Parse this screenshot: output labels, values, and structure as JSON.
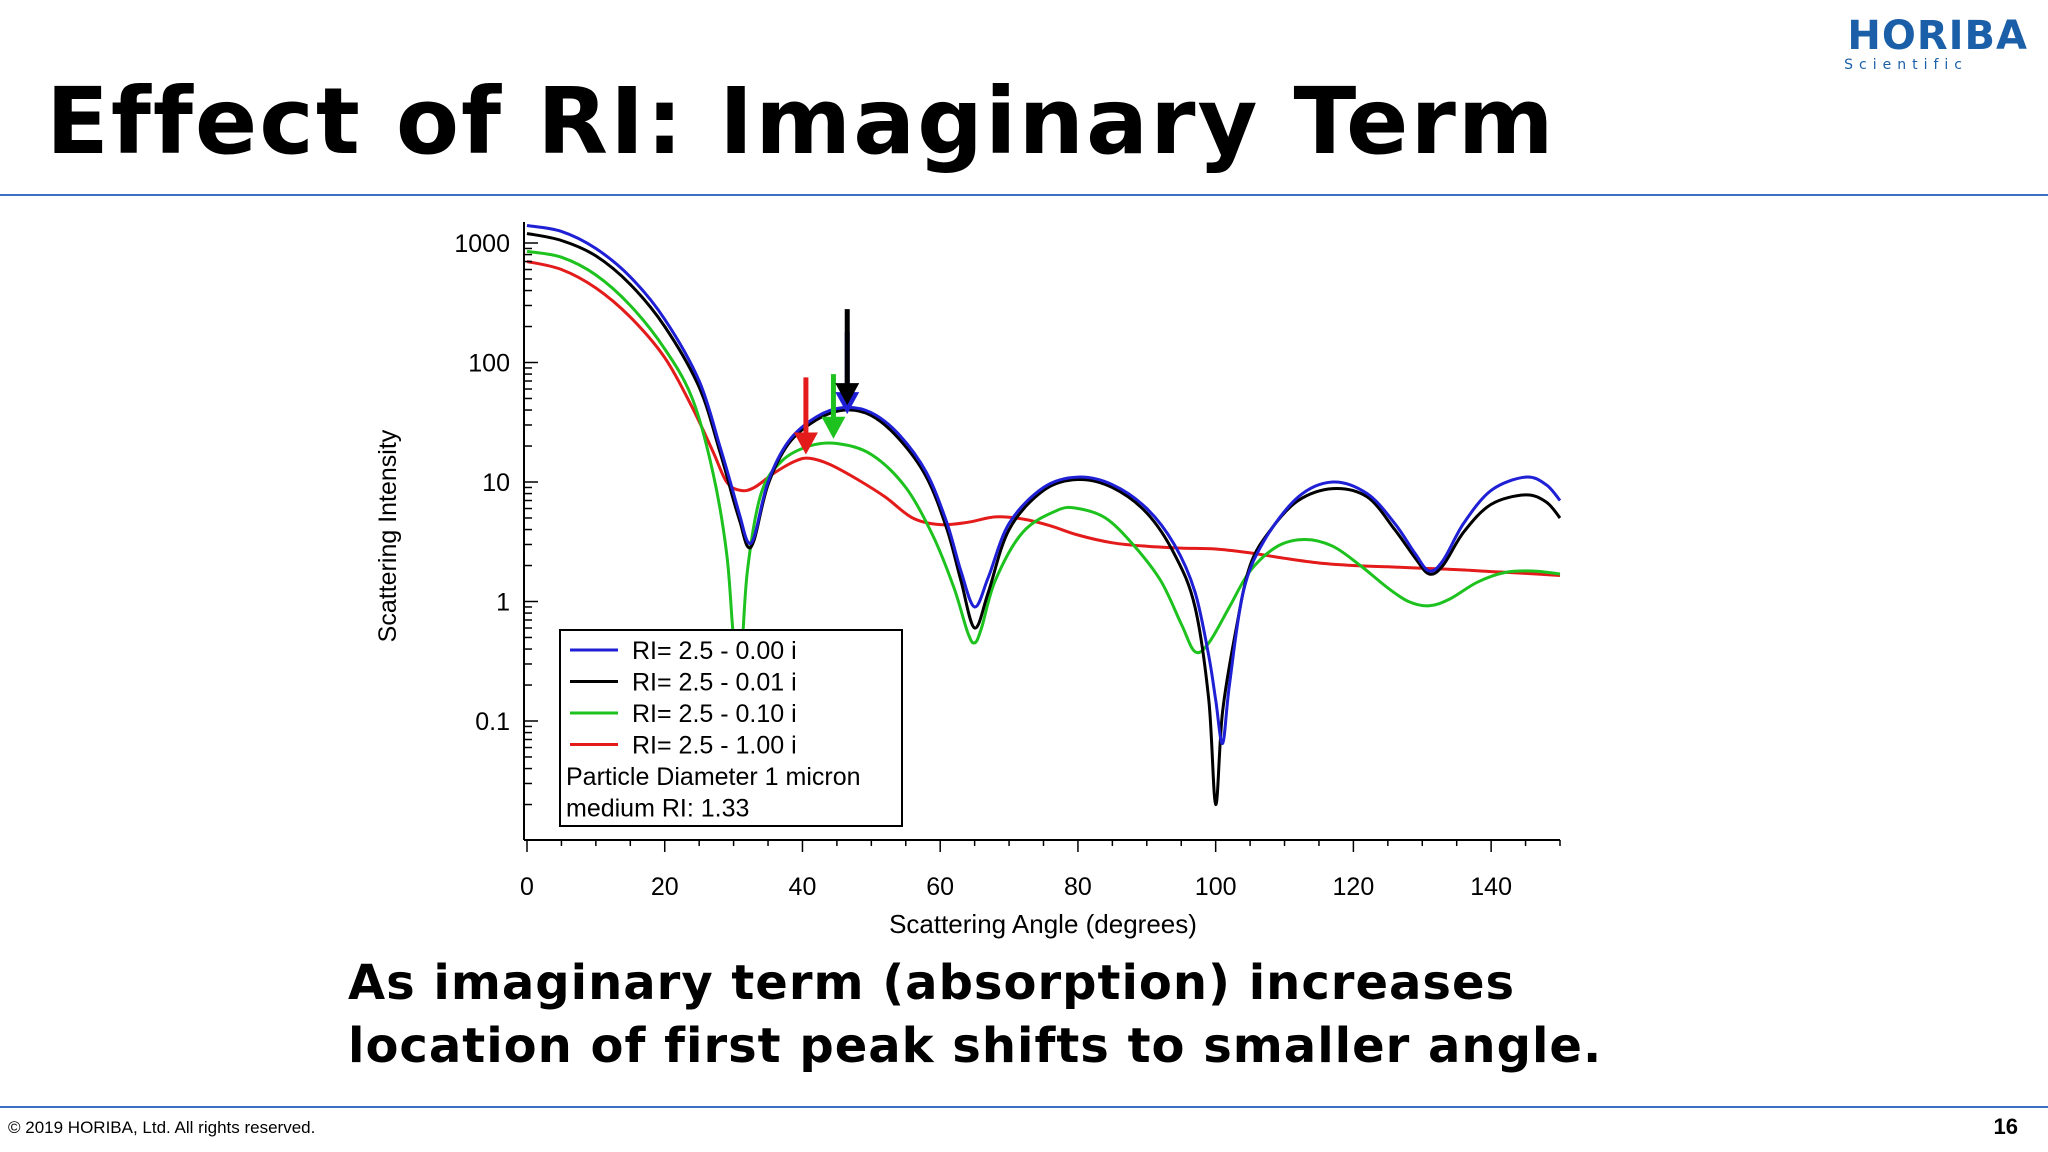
{
  "slide": {
    "title": "Effect of RI: Imaginary Term",
    "logo": {
      "main": "HORIBA",
      "sub": "Scientific"
    },
    "caption_lines": [
      "As imaginary term (absorption) increases",
      "location of first peak shifts to smaller angle."
    ],
    "footer_copyright": "© 2019 HORIBA, Ltd. All rights reserved.",
    "page_number": "16"
  },
  "chart_data": {
    "type": "line",
    "title": "",
    "xlabel": "Scattering Angle (degrees)",
    "ylabel": "Scattering Intensity",
    "xlim": [
      0,
      150
    ],
    "ylim": [
      0.01,
      1500
    ],
    "yscale": "log",
    "xticks": [
      0,
      20,
      40,
      60,
      80,
      100,
      120,
      140
    ],
    "yticks": [
      1000,
      100,
      10,
      1,
      0.1
    ],
    "ytick_labels": [
      "1000",
      "100",
      "10",
      "1",
      "0.1"
    ],
    "legend_position": "bottom-left",
    "legend_notes": [
      "Particle Diameter 1 micron",
      "medium RI:  1.33"
    ],
    "series": [
      {
        "name": "RI= 2.5 - 0.00 i",
        "color": "#1f1fd6",
        "points": [
          [
            0,
            1400
          ],
          [
            5,
            1250
          ],
          [
            10,
            900
          ],
          [
            15,
            520
          ],
          [
            20,
            230
          ],
          [
            25,
            70
          ],
          [
            28,
            20
          ],
          [
            30,
            8
          ],
          [
            31,
            5
          ],
          [
            32,
            3.2
          ],
          [
            33,
            3.5
          ],
          [
            35,
            10
          ],
          [
            38,
            22
          ],
          [
            42,
            35
          ],
          [
            46,
            42
          ],
          [
            50,
            38
          ],
          [
            54,
            25
          ],
          [
            58,
            12
          ],
          [
            61,
            4.5
          ],
          [
            63,
            1.8
          ],
          [
            65,
            0.9
          ],
          [
            67,
            1.6
          ],
          [
            70,
            4.5
          ],
          [
            75,
            9
          ],
          [
            80,
            11
          ],
          [
            85,
            9.5
          ],
          [
            90,
            6
          ],
          [
            94,
            3
          ],
          [
            97,
            1.2
          ],
          [
            99,
            0.35
          ],
          [
            100,
            0.15
          ],
          [
            101,
            0.065
          ],
          [
            102,
            0.2
          ],
          [
            104,
            1.2
          ],
          [
            107,
            3.2
          ],
          [
            112,
            7.5
          ],
          [
            117,
            10
          ],
          [
            122,
            8
          ],
          [
            126,
            4.5
          ],
          [
            129,
            2.5
          ],
          [
            131,
            1.8
          ],
          [
            133,
            2.2
          ],
          [
            136,
            4.5
          ],
          [
            140,
            8.5
          ],
          [
            145,
            11
          ],
          [
            148,
            9.5
          ],
          [
            150,
            7
          ]
        ]
      },
      {
        "name": "RI= 2.5 - 0.01 i",
        "color": "#000000",
        "points": [
          [
            0,
            1200
          ],
          [
            5,
            1050
          ],
          [
            10,
            780
          ],
          [
            15,
            450
          ],
          [
            20,
            200
          ],
          [
            25,
            62
          ],
          [
            28,
            18
          ],
          [
            30,
            7
          ],
          [
            31,
            4.5
          ],
          [
            32,
            2.9
          ],
          [
            33,
            3.3
          ],
          [
            35,
            9.5
          ],
          [
            38,
            21
          ],
          [
            42,
            33
          ],
          [
            46,
            40
          ],
          [
            50,
            36
          ],
          [
            54,
            23
          ],
          [
            58,
            11
          ],
          [
            61,
            4
          ],
          [
            63,
            1.5
          ],
          [
            65,
            0.6
          ],
          [
            67,
            1.2
          ],
          [
            70,
            4
          ],
          [
            75,
            8.5
          ],
          [
            80,
            10.5
          ],
          [
            85,
            9
          ],
          [
            90,
            5.5
          ],
          [
            94,
            2.5
          ],
          [
            97,
            0.9
          ],
          [
            99,
            0.15
          ],
          [
            100,
            0.02
          ],
          [
            101,
            0.12
          ],
          [
            103,
            0.6
          ],
          [
            105,
            2
          ],
          [
            108,
            4
          ],
          [
            112,
            7
          ],
          [
            117,
            8.8
          ],
          [
            122,
            7.5
          ],
          [
            126,
            4
          ],
          [
            129,
            2.3
          ],
          [
            131,
            1.7
          ],
          [
            133,
            2
          ],
          [
            136,
            3.8
          ],
          [
            140,
            6.5
          ],
          [
            145,
            7.8
          ],
          [
            148,
            6.8
          ],
          [
            150,
            5
          ]
        ]
      },
      {
        "name": "RI= 2.5 - 0.10 i",
        "color": "#1ec21e",
        "points": [
          [
            0,
            850
          ],
          [
            5,
            760
          ],
          [
            10,
            540
          ],
          [
            15,
            300
          ],
          [
            20,
            130
          ],
          [
            24,
            50
          ],
          [
            27,
            12
          ],
          [
            29,
            2.5
          ],
          [
            30,
            0.5
          ],
          [
            31,
            0.3
          ],
          [
            32,
            1.8
          ],
          [
            34,
            8
          ],
          [
            37,
            15
          ],
          [
            41,
            20
          ],
          [
            45,
            21
          ],
          [
            50,
            17
          ],
          [
            55,
            9
          ],
          [
            59,
            3.5
          ],
          [
            62,
            1.3
          ],
          [
            64,
            0.55
          ],
          [
            65,
            0.45
          ],
          [
            66,
            0.6
          ],
          [
            68,
            1.5
          ],
          [
            72,
            3.8
          ],
          [
            77,
            5.8
          ],
          [
            80,
            6
          ],
          [
            84,
            5
          ],
          [
            88,
            3
          ],
          [
            92,
            1.5
          ],
          [
            95,
            0.65
          ],
          [
            97,
            0.38
          ],
          [
            99,
            0.45
          ],
          [
            102,
            0.9
          ],
          [
            105,
            1.8
          ],
          [
            109,
            2.9
          ],
          [
            113,
            3.3
          ],
          [
            117,
            2.9
          ],
          [
            121,
            2
          ],
          [
            125,
            1.3
          ],
          [
            128,
            1
          ],
          [
            131,
            0.92
          ],
          [
            134,
            1.05
          ],
          [
            138,
            1.45
          ],
          [
            142,
            1.75
          ],
          [
            146,
            1.8
          ],
          [
            150,
            1.7
          ]
        ]
      },
      {
        "name": "RI= 2.5 - 1.00 i",
        "color": "#e31b1b",
        "points": [
          [
            0,
            700
          ],
          [
            5,
            600
          ],
          [
            10,
            420
          ],
          [
            15,
            240
          ],
          [
            20,
            110
          ],
          [
            24,
            42
          ],
          [
            27,
            18
          ],
          [
            29,
            10
          ],
          [
            31,
            8.5
          ],
          [
            33,
            9
          ],
          [
            36,
            12
          ],
          [
            39,
            15
          ],
          [
            41,
            15.8
          ],
          [
            44,
            14
          ],
          [
            48,
            10.5
          ],
          [
            52,
            7.5
          ],
          [
            56,
            5
          ],
          [
            60,
            4.4
          ],
          [
            64,
            4.6
          ],
          [
            68,
            5.1
          ],
          [
            72,
            4.9
          ],
          [
            76,
            4.3
          ],
          [
            80,
            3.6
          ],
          [
            85,
            3.1
          ],
          [
            90,
            2.9
          ],
          [
            95,
            2.8
          ],
          [
            100,
            2.75
          ],
          [
            105,
            2.55
          ],
          [
            110,
            2.3
          ],
          [
            115,
            2.1
          ],
          [
            120,
            2
          ],
          [
            125,
            1.95
          ],
          [
            130,
            1.9
          ],
          [
            135,
            1.85
          ],
          [
            140,
            1.78
          ],
          [
            145,
            1.72
          ],
          [
            150,
            1.65
          ]
        ]
      }
    ],
    "annotations": [
      {
        "type": "arrow",
        "color": "#e31b1b",
        "x": 40.5,
        "y_from": 75,
        "y_to": 17
      },
      {
        "type": "arrow",
        "color": "#1ec21e",
        "x": 44.5,
        "y_from": 80,
        "y_to": 23
      },
      {
        "type": "arrow",
        "color": "#1f1fd6",
        "x": 46.5,
        "y_from": 180,
        "y_to": 37
      },
      {
        "type": "arrow",
        "color": "#000000",
        "x": 46.5,
        "y_from": 280,
        "y_to": 44
      }
    ]
  }
}
